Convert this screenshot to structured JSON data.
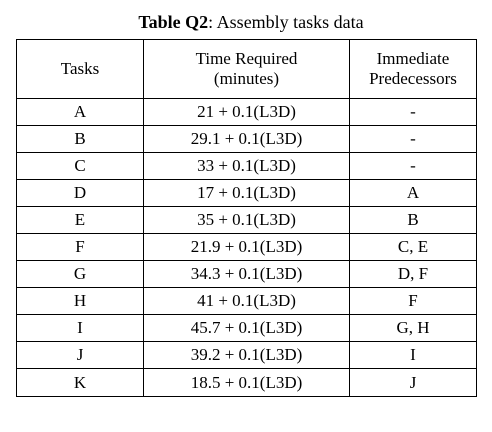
{
  "caption": {
    "label": "Table Q2",
    "text": ": Assembly tasks data"
  },
  "table": {
    "headers": {
      "tasks": "Tasks",
      "time_line1": "Time Required",
      "time_line2": "(minutes)",
      "pred_line1": "Immediate",
      "pred_line2": "Predecessors"
    },
    "rows": [
      {
        "task": "A",
        "time": "21 + 0.1(L3D)",
        "pred": "-"
      },
      {
        "task": "B",
        "time": "29.1 + 0.1(L3D)",
        "pred": "-"
      },
      {
        "task": "C",
        "time": "33 + 0.1(L3D)",
        "pred": "-"
      },
      {
        "task": "D",
        "time": "17 + 0.1(L3D)",
        "pred": "A"
      },
      {
        "task": "E",
        "time": "35 + 0.1(L3D)",
        "pred": "B"
      },
      {
        "task": "F",
        "time": "21.9 + 0.1(L3D)",
        "pred": "C, E"
      },
      {
        "task": "G",
        "time": "34.3 + 0.1(L3D)",
        "pred": "D, F"
      },
      {
        "task": "H",
        "time": "41 + 0.1(L3D)",
        "pred": "F"
      },
      {
        "task": "I",
        "time": "45.7 + 0.1(L3D)",
        "pred": "G, H"
      },
      {
        "task": "J",
        "time": "39.2 + 0.1(L3D)",
        "pred": "I"
      },
      {
        "task": "K",
        "time": "18.5 + 0.1(L3D)",
        "pred": "J"
      }
    ]
  }
}
